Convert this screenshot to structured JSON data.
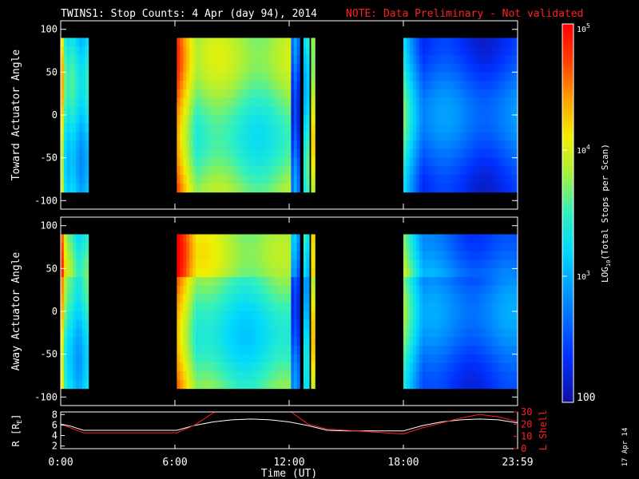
{
  "header": {
    "title": "TWINS1: Stop Counts:  4 Apr (day  94), 2014",
    "note": "NOTE: Data Preliminary - Not validated",
    "note_color": "#ff2020"
  },
  "side_stamp": "17 Apr 14",
  "colors": {
    "background": "#000000",
    "axis": "#ffffff",
    "r_line": "#ffffff",
    "l_shell_line": "#ff2020"
  },
  "chart_data": [
    {
      "type": "heatmap",
      "ylabel": "Toward Actuator Angle",
      "ylim": [
        -110,
        110
      ],
      "y_ticks": [
        "-100",
        "-50",
        "0",
        "50",
        "100"
      ],
      "x_ticks": [
        "0:00",
        "6:00",
        "12:00",
        "18:00",
        "23:59"
      ],
      "xlim_hours": [
        0,
        24
      ],
      "angle_range": [
        -90,
        90
      ],
      "colormap": "rainbow-log",
      "data_blocks": [
        {
          "start": 0.0,
          "end": 1.45,
          "level": 0.4,
          "edge": "left"
        },
        {
          "start": 6.1,
          "end": 12.1,
          "level": 0.55,
          "edge": "left"
        },
        {
          "start": 12.1,
          "end": 12.55,
          "level": 0.2,
          "edge": "none"
        },
        {
          "start": 12.75,
          "end": 13.05,
          "level": 0.45,
          "edge": "none"
        },
        {
          "start": 13.15,
          "end": 13.35,
          "level": 0.7,
          "edge": "none"
        },
        {
          "start": 18.0,
          "end": 24.0,
          "level": 0.18,
          "edge": "left"
        }
      ]
    },
    {
      "type": "heatmap",
      "ylabel": "Away Actuator Angle",
      "ylim": [
        -110,
        110
      ],
      "y_ticks": [
        "-100",
        "-50",
        "0",
        "50",
        "100"
      ],
      "x_ticks": [
        "0:00",
        "6:00",
        "12:00",
        "18:00",
        "23:59"
      ],
      "xlim_hours": [
        0,
        24
      ],
      "angle_range": [
        -90,
        90
      ],
      "colormap": "rainbow-log",
      "data_blocks": [
        {
          "start": 0.0,
          "end": 1.45,
          "level": 0.42,
          "edge": "left"
        },
        {
          "start": 6.1,
          "end": 12.1,
          "level": 0.5,
          "edge": "left"
        },
        {
          "start": 12.1,
          "end": 12.55,
          "level": 0.2,
          "edge": "none"
        },
        {
          "start": 12.75,
          "end": 13.05,
          "level": 0.4,
          "edge": "none"
        },
        {
          "start": 13.15,
          "end": 13.35,
          "level": 0.7,
          "edge": "none"
        },
        {
          "start": 18.0,
          "end": 24.0,
          "level": 0.2,
          "edge": "left"
        }
      ]
    },
    {
      "type": "line",
      "ylabel_left": "R [R",
      "ylabel_left_sub": "E",
      "ylabel_right": "L Shell",
      "xlabel": "Time (UT)",
      "x_ticks": [
        "0:00",
        "6:00",
        "12:00",
        "18:00",
        "23:59"
      ],
      "x_tick_hours": [
        0,
        6,
        12,
        18,
        24
      ],
      "ylim_left": [
        1.5,
        8.5
      ],
      "y_ticks_left": [
        "2",
        "4",
        "6",
        "8"
      ],
      "y_tick_values_left": [
        2,
        4,
        6,
        8
      ],
      "ylim_right": [
        0,
        30
      ],
      "y_ticks_right": [
        "0",
        "10",
        "20",
        "30"
      ],
      "y_tick_values_right": [
        0,
        10,
        20,
        30
      ],
      "series": [
        {
          "axis": "left",
          "color": "#ffffff",
          "x": [
            0,
            0.5,
            1.2,
            3,
            6.1,
            7,
            8,
            9,
            10,
            11,
            12,
            13,
            14,
            15,
            16,
            18,
            19,
            20,
            21,
            22,
            23,
            24
          ],
          "y": [
            6.2,
            5.8,
            5.0,
            5.0,
            5.0,
            5.9,
            6.6,
            7.0,
            7.15,
            7.0,
            6.6,
            5.9,
            5.0,
            4.9,
            4.9,
            4.9,
            5.9,
            6.6,
            7.0,
            7.15,
            7.0,
            6.4
          ]
        },
        {
          "axis": "right",
          "color": "#ff2020",
          "x": [
            0,
            0.5,
            1.2,
            3,
            6.1,
            7,
            8.1,
            12.1,
            13,
            14,
            16,
            18,
            19,
            20,
            21,
            22,
            23,
            24
          ],
          "y": [
            20,
            17,
            13,
            13,
            13,
            19,
            30,
            30,
            20,
            16,
            14,
            12,
            17,
            21,
            25,
            28,
            26,
            22
          ]
        }
      ]
    },
    {
      "type": "colorbar",
      "ylabel": "LOG",
      "ylabel_sub": "10",
      "ylabel_rest": "(Total Stops per Scan)",
      "tick_labels": [
        {
          "base": "10",
          "exp": "5",
          "value": 5
        },
        {
          "base": "10",
          "exp": "4",
          "value": 4
        },
        {
          "base": "10",
          "exp": "3",
          "value": 3
        },
        {
          "base": "100",
          "exp": "",
          "value": 2
        }
      ],
      "range_log10": [
        2,
        5
      ]
    }
  ]
}
